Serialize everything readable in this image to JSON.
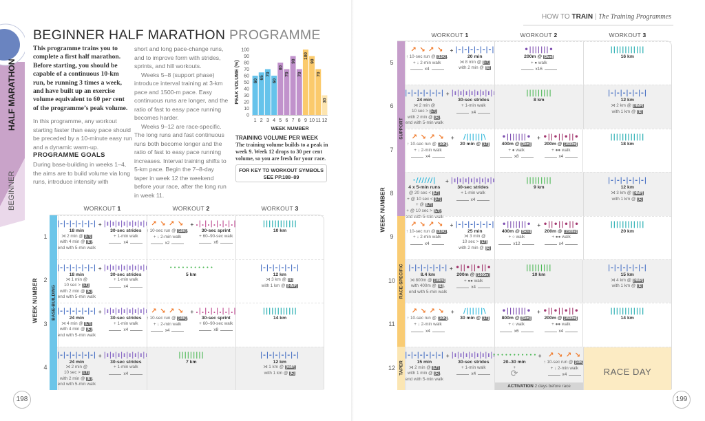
{
  "running_head": {
    "section": "HOW TO",
    "section_bold": "TRAIN",
    "separator": "|",
    "subtitle": "The Training Programmes"
  },
  "side_tab": {
    "category": "HALF MARATHON",
    "level": "BEGINNER",
    "colors": {
      "dark": "#c9a3c9",
      "light": "#ead8ea",
      "circle": "#6a84c0"
    }
  },
  "title": {
    "main": "BEGINNER HALF MARATHON",
    "light": "PROGRAMME"
  },
  "intro": "This programme trains you to complete a first half marathon. Before starting, you should be capable of a continuous 10-km run, be running 3 times a week, and have built up an exercise volume equivalent to 60 per cent of the programme’s peak volume.",
  "para1": "In this programme, any workout starting faster than easy pace should be preceded by a 10-minute easy run and a dynamic warm-up.",
  "goals_heading": "PROGRAMME GOALS",
  "para2": "During base-building in weeks 1–4, the aims are to build volume via long runs, introduce intensity with",
  "para3a": "short and long pace-change runs, and to improve form with strides, sprints, and hill workouts.",
  "para3b": "Weeks 5–8 (support phase) introduce interval training at 3-km pace and 1500-m pace. Easy continuous runs are longer, and the ratio of fast to easy pace running becomes harder.",
  "para3c": "Weeks 9–12 are race-specific. The long runs and fast continuous runs both become longer and the ratio of fast to easy pace running increases. Interval training shifts to 5-km pace. Begin the 7–8-day taper in week 12 the weekend before your race, after the long run in week 11.",
  "chart_data": {
    "type": "bar",
    "categories": [
      "1",
      "2",
      "3",
      "4",
      "5",
      "6",
      "7",
      "8",
      "9",
      "10",
      "11",
      "12"
    ],
    "values": [
      60,
      65,
      70,
      60,
      80,
      70,
      90,
      70,
      100,
      90,
      70,
      30
    ],
    "data_labels": [
      "60",
      "65",
      "70",
      "60",
      "80",
      "70",
      "90",
      "70",
      "100",
      "90",
      "70",
      "30"
    ],
    "bar_colors": [
      "#66c3eb",
      "#66c3eb",
      "#66c3eb",
      "#66c3eb",
      "#c192cc",
      "#c192cc",
      "#c192cc",
      "#c192cc",
      "#fbca6c",
      "#fbca6c",
      "#fbca6c",
      "#fde5b0"
    ],
    "xlabel": "WEEK NUMBER",
    "ylabel": "PEAK VOLUME (%)",
    "ylim": [
      0,
      100
    ],
    "yticks": [
      "0",
      "10",
      "20",
      "30",
      "40",
      "50",
      "60",
      "70",
      "80",
      "90",
      "100"
    ],
    "grid": false
  },
  "chart_caption": {
    "heading": "TRAINING VOLUME PER WEEK",
    "text": "The training volume builds to a peak in week 9. Week 12 drops to 30 per cent volume, so you are fresh for your race."
  },
  "key_box": {
    "line1": "FOR KEY TO WORKOUT SYMBOLS",
    "line2": "SEE PP.188–89"
  },
  "page_numbers": {
    "left": "198",
    "right": "199"
  },
  "table": {
    "workout_word": "WORKOUT",
    "workout_numbers": [
      "1",
      "2",
      "3"
    ],
    "week_axis_label": "WEEK NUMBER",
    "phases": [
      {
        "label": "BASE-BUILDING",
        "weeks": [
          1,
          4
        ],
        "color": "#6cc5e9"
      },
      {
        "label": "SUPPORT",
        "weeks": [
          5,
          8
        ],
        "color": "#c59dca"
      },
      {
        "label": "RACE-SPECIFIC",
        "weeks": [
          9,
          11
        ],
        "color": "#f9cc74"
      },
      {
        "label": "TAPER",
        "weeks": [
          12,
          12
        ],
        "color": "#fbe6b3"
      }
    ],
    "race_day": "RACE DAY",
    "activation": {
      "label": "ACTIVATION",
      "note": "2 days before race"
    },
    "weeks": [
      {
        "week": "1",
        "cells": [
          [
            {
              "icon": "easy-run-icon",
              "lines": [
                "18 min",
                "⋊ 2 min @ [LT]",
                "with 4 min @ [E],",
                "end with 5-min walk"
              ]
            },
            {
              "icon": "strides-icon",
              "lines": [
                "30-sec strides",
                "+ 1-min walk"
              ],
              "reps": "x4"
            }
          ],
          [
            {
              "icon": "hill-icon",
              "lines": [
                "↑ 10-sec run @ [10K],",
                "+ ↓ 2-min walk"
              ],
              "reps": "x2"
            },
            {
              "icon": "sprint-icon",
              "lines": [
                "30-sec sprint",
                "+ 60–90-sec walk"
              ],
              "reps": "x6"
            }
          ],
          [
            {
              "icon": "long-run-icon",
              "lines": [
                "10 km"
              ]
            }
          ]
        ]
      },
      {
        "week": "2",
        "cells": [
          [
            {
              "icon": "easy-run-icon",
              "lines": [
                "18 min",
                "⋊ 1 min @",
                "10 sec > [LT]",
                "with 2 min @ [E],",
                "end with 5-min walk"
              ]
            },
            {
              "icon": "strides-icon",
              "lines": [
                "30-sec strides",
                "+ 1-min walk"
              ],
              "reps": "x4"
            }
          ],
          [
            {
              "icon": "recovery-run-icon",
              "lines": [
                "5 km"
              ]
            }
          ],
          [
            {
              "icon": "easy-run-icon",
              "lines": [
                "12 km",
                "⋊ 3 km @ [E]",
                "with 1 km @ [HMP]"
              ]
            }
          ]
        ]
      },
      {
        "week": "3",
        "cells": [
          [
            {
              "icon": "easy-run-icon",
              "lines": [
                "24 min",
                "⋊ 4 min @ [LT]",
                "with 4 min @ [E],",
                "end with 5-min walk"
              ]
            },
            {
              "icon": "strides-icon",
              "lines": [
                "30-sec strides",
                "+ 1-min walk"
              ],
              "reps": "x4"
            }
          ],
          [
            {
              "icon": "hill-icon",
              "lines": [
                "↑ 10-sec run @ [10K],",
                "+ ↓ 2-min walk"
              ],
              "reps": "x4"
            },
            {
              "icon": "sprint-icon",
              "lines": [
                "30-sec sprint",
                "+ 60–90-sec walk"
              ],
              "reps": "x8"
            }
          ],
          [
            {
              "icon": "long-run-icon",
              "lines": [
                "14 km"
              ]
            }
          ]
        ]
      },
      {
        "week": "4",
        "cells": [
          [
            {
              "icon": "easy-run-icon",
              "lines": [
                "24 min",
                "⋊ 2 min @",
                "10 sec > [LT]",
                "with 2 min @ [E],",
                "end with 5-min walk"
              ]
            },
            {
              "icon": "strides-icon",
              "lines": [
                "30-sec strides",
                "+ 1-min walk"
              ],
              "reps": "x4"
            }
          ],
          [
            {
              "icon": "steady-run-icon",
              "lines": [
                "7 km"
              ]
            }
          ],
          [
            {
              "icon": "easy-run-icon",
              "lines": [
                "12 km",
                "⋊ 1 km @ [HMP]",
                "with 1 km @ [E]"
              ]
            }
          ]
        ]
      },
      {
        "week": "5",
        "cells": [
          [
            {
              "icon": "hill-icon",
              "lines": [
                "↑ 10-sec run @ [10K],",
                "+ ↓ 2-min walk"
              ],
              "reps": "x4"
            },
            {
              "icon": "easy-run-icon",
              "lines": [
                "20 min",
                "⋊ 8 min @ [LT]",
                "with 2 min @ [E]"
              ]
            }
          ],
          [
            {
              "icon": "interval-icon",
              "lines": [
                "200m @ [3km]",
                "+ ● walk"
              ],
              "reps": "x16"
            }
          ],
          [
            {
              "icon": "long-run-icon",
              "lines": [
                "16 km"
              ]
            }
          ]
        ]
      },
      {
        "week": "6",
        "cells": [
          [
            {
              "icon": "easy-run-icon",
              "lines": [
                "24 min",
                "⋊ 2 min @",
                "10 sec > [LT]",
                "with 2 min @ [E],",
                "end with 5-min walk"
              ]
            },
            {
              "icon": "strides-icon",
              "lines": [
                "30-sec strides",
                "+ 1-min walk"
              ],
              "reps": "x4"
            }
          ],
          [
            {
              "icon": "steady-run-icon",
              "lines": [
                "8 km"
              ]
            }
          ],
          [
            {
              "icon": "easy-run-icon",
              "lines": [
                "12 km",
                "⋊ 2 km @ [HMP]",
                "with 1 km @ [E]"
              ]
            }
          ]
        ]
      },
      {
        "week": "7",
        "cells": [
          [
            {
              "icon": "hill-icon",
              "lines": [
                "↑ 10-sec run @ [10K],",
                "+ ↓ 2-min walk"
              ],
              "reps": "x4"
            },
            {
              "icon": "tempo-run-icon",
              "lines": [
                "20 min @ [LT]"
              ]
            }
          ],
          [
            {
              "icon": "interval-icon",
              "lines": [
                "400m @ [3km]",
                "+ ● walk"
              ],
              "reps": "x8"
            },
            {
              "icon": "fast-interval-icon",
              "lines": [
                "200m @ [1500m]",
                "+ ●● walk"
              ],
              "reps": "x4"
            }
          ],
          [
            {
              "icon": "long-run-icon",
              "lines": [
                "18 km"
              ]
            }
          ]
        ]
      },
      {
        "week": "8",
        "cells": [
          [
            {
              "icon": "progression-run-icon",
              "lines": [
                "4 x 5-min runs",
                "@ 20 sec < [LT]",
                "+ @ 10 sec < [LT]",
                "+ @ [LT]",
                "+ @ 10 sec > [LT],",
                "end with 5-min walk"
              ]
            },
            {
              "icon": "strides-icon",
              "lines": [
                "30-sec strides",
                "+ 1-min walk"
              ],
              "reps": "x4"
            }
          ],
          [
            {
              "icon": "steady-run-icon",
              "lines": [
                "9 km"
              ]
            }
          ],
          [
            {
              "icon": "easy-run-icon",
              "lines": [
                "12 km",
                "⋊ 3 km @ [HMP]",
                "with 1 km @ [E]"
              ]
            }
          ]
        ]
      },
      {
        "week": "9",
        "cells": [
          [
            {
              "icon": "hill-icon",
              "lines": [
                "↑ 10-sec run @ [10K],",
                "+ ↓ 2-min walk"
              ],
              "reps": "x4"
            },
            {
              "icon": "easy-run-icon",
              "lines": [
                "25 min",
                "⋊ 3 min @",
                "10 sec > [LT]",
                "with 2 min @ [E]"
              ]
            }
          ],
          [
            {
              "icon": "interval-icon",
              "lines": [
                "400m @ [5km]",
                "+ ○ walk"
              ],
              "reps": "x12"
            },
            {
              "icon": "fast-interval-icon",
              "lines": [
                "200m @ [1500m]",
                "+ ●● walk"
              ],
              "reps": "x4"
            }
          ],
          [
            {
              "icon": "long-run-icon",
              "lines": [
                "20 km"
              ]
            }
          ]
        ]
      },
      {
        "week": "10",
        "cells": [
          [
            {
              "icon": "easy-run-icon",
              "lines": [
                "8.4 km",
                "⋊ 800m @ [10km]",
                "with 400m @ [E],",
                "end with 5-min walk"
              ]
            },
            {
              "icon": "fast-interval-icon",
              "lines": [
                "200m @ [1500m]",
                "+ ●● walk"
              ],
              "reps": "x4"
            }
          ],
          [
            {
              "icon": "steady-run-icon",
              "lines": [
                "10 km"
              ]
            }
          ],
          [
            {
              "icon": "easy-run-icon",
              "lines": [
                "15 km",
                "⋊ 4 km @ [HMP]",
                "with 1 km @ [E]"
              ]
            }
          ]
        ]
      },
      {
        "week": "11",
        "cells": [
          [
            {
              "icon": "hill-icon",
              "lines": [
                "↑ 10-sec run @ [10K],",
                "+ ↓ 2-min walk"
              ],
              "reps": "x4"
            },
            {
              "icon": "tempo-run-icon",
              "lines": [
                "30 min @ [LT]"
              ]
            }
          ],
          [
            {
              "icon": "interval-icon",
              "lines": [
                "800m @ [5km]",
                "+ ○ walk"
              ],
              "reps": "x6"
            },
            {
              "icon": "fast-interval-icon",
              "lines": [
                "200m @ [1500m]",
                "+ ●● walk"
              ],
              "reps": "x4"
            }
          ],
          [
            {
              "icon": "long-run-icon",
              "lines": [
                "14 km"
              ]
            }
          ]
        ]
      },
      {
        "week": "12",
        "cells": [
          [
            {
              "icon": "easy-run-icon",
              "lines": [
                "15 min",
                "⋊ 2 min @ [LT]",
                "with 1 min @ [E],",
                "end with 5-min walk"
              ]
            },
            {
              "icon": "strides-icon",
              "lines": [
                "30-sec strides",
                "+ 1-min walk"
              ],
              "reps": "x4"
            }
          ],
          [
            {
              "icon": "recovery-run-icon",
              "lines": [
                "20–30 min",
                "+"
              ],
              "extra_icon": "activation-icon"
            },
            {
              "icon": "hill-icon",
              "lines": [
                "↑ 10-sec run @ [10K],",
                "+ ↓ 2-min walk"
              ],
              "reps": "x4"
            }
          ],
          "RACE_DAY"
        ]
      }
    ]
  }
}
